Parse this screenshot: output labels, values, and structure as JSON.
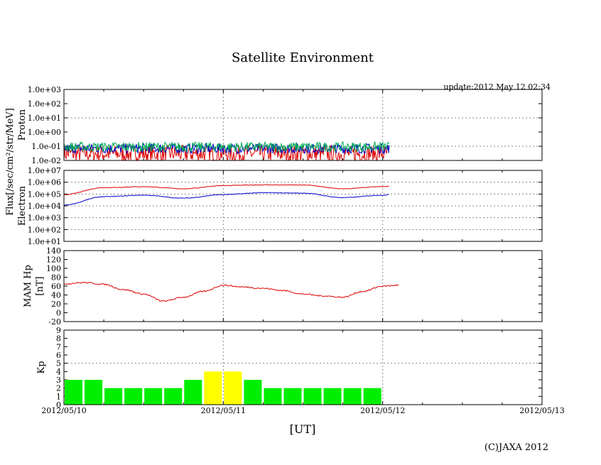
{
  "header": {
    "title": "Satellite Environment",
    "update": "update:2012 May 12 02:34"
  },
  "footer": {
    "xunit": "[UT]",
    "copyright": "(C)JAXA 2012"
  },
  "colors": {
    "red": "#dd0000",
    "blue": "#0000cc",
    "green": "#00aa55",
    "kp_normal": "#00ee00",
    "kp_elevated": "#ffff00",
    "frame": "#000000",
    "grid": "#888888"
  },
  "chart_data": [
    {
      "type": "line",
      "panel": "proton",
      "ylabel": "Proton",
      "yscale": "log",
      "ylim": [
        0.01,
        1000
      ],
      "yticks": [
        "1.0e-02",
        "1.0e-01",
        "1.0e+00",
        "1.0e+01",
        "1.0e+02",
        "1.0e+03"
      ],
      "series": [
        {
          "color": "red",
          "baseline": 0.03,
          "values": "noisy flux near 0.02–0.08"
        },
        {
          "color": "blue",
          "baseline": 0.07,
          "values": "noisy flux near 0.02–0.15"
        },
        {
          "color": "green",
          "baseline": 0.09,
          "values": "noisy flux near 0.05–0.15"
        }
      ],
      "x_end": "2012-05-12T01:00"
    },
    {
      "type": "line",
      "panel": "electron",
      "ylabel": "Electron",
      "shared_ylabel": "Flux[/sec/cm²/str/MeV]",
      "yscale": "log",
      "ylim": [
        10,
        10000000
      ],
      "yticks": [
        "1.0e+01",
        "1.0e+02",
        "1.0e+03",
        "1.0e+04",
        "1.0e+05",
        "1.0e+06",
        "1.0e+07"
      ],
      "series": [
        {
          "color": "red",
          "x": [
            "2012-05-10T00:00",
            "2012-05-10T06:00",
            "2012-05-10T12:00",
            "2012-05-10T18:00",
            "2012-05-11T00:00",
            "2012-05-11T06:00",
            "2012-05-11T12:00",
            "2012-05-11T18:00",
            "2012-05-12T00:00",
            "2012-05-12T01:00"
          ],
          "values": [
            90000,
            350000,
            420000,
            280000,
            520000,
            600000,
            580000,
            280000,
            420000,
            450000
          ]
        },
        {
          "color": "blue",
          "x": [
            "2012-05-10T00:00",
            "2012-05-10T06:00",
            "2012-05-10T12:00",
            "2012-05-10T18:00",
            "2012-05-11T00:00",
            "2012-05-11T06:00",
            "2012-05-11T12:00",
            "2012-05-11T18:00",
            "2012-05-12T00:00",
            "2012-05-12T01:00"
          ],
          "values": [
            12000,
            60000,
            80000,
            45000,
            90000,
            130000,
            120000,
            50000,
            80000,
            90000
          ]
        }
      ],
      "x_end": "2012-05-12T01:00"
    },
    {
      "type": "line",
      "panel": "mam",
      "ylabel": "MAM Hp",
      "yunit": "[nT]",
      "ylim": [
        -20,
        140
      ],
      "yticks": [
        "-20",
        "0",
        "20",
        "40",
        "60",
        "80",
        "100",
        "120",
        "140"
      ],
      "series": [
        {
          "color": "red",
          "x": [
            "2012-05-10T00:00",
            "2012-05-10T03:00",
            "2012-05-10T06:00",
            "2012-05-10T09:00",
            "2012-05-10T12:00",
            "2012-05-10T15:00",
            "2012-05-10T18:00",
            "2012-05-10T21:00",
            "2012-05-11T00:00",
            "2012-05-11T03:00",
            "2012-05-11T06:00",
            "2012-05-11T09:00",
            "2012-05-11T12:00",
            "2012-05-11T15:00",
            "2012-05-11T18:00",
            "2012-05-11T21:00",
            "2012-05-12T00:00",
            "2012-05-12T02:30"
          ],
          "values": [
            65,
            68,
            64,
            52,
            42,
            26,
            35,
            48,
            62,
            58,
            55,
            50,
            42,
            38,
            35,
            48,
            60,
            62
          ]
        }
      ],
      "x_end": "2012-05-12T02:30"
    },
    {
      "type": "bar",
      "panel": "kp",
      "ylabel": "Kp",
      "ylim": [
        0,
        9
      ],
      "yticks": [
        "0",
        "1",
        "2",
        "3",
        "4",
        "5",
        "6",
        "7",
        "8",
        "9"
      ],
      "interval_hours": 3,
      "start": "2012-05-10T00:00",
      "values": [
        3,
        3,
        2,
        2,
        2,
        2,
        3,
        4,
        4,
        3,
        2,
        2,
        2,
        2,
        2,
        2
      ],
      "elevated_threshold": 4
    }
  ],
  "xaxis": {
    "ticks": [
      "2012/05/10",
      "2012/05/11",
      "2012/05/12",
      "2012/05/13"
    ],
    "range": [
      "2012-05-10T00:00",
      "2012-05-13T00:00"
    ]
  }
}
